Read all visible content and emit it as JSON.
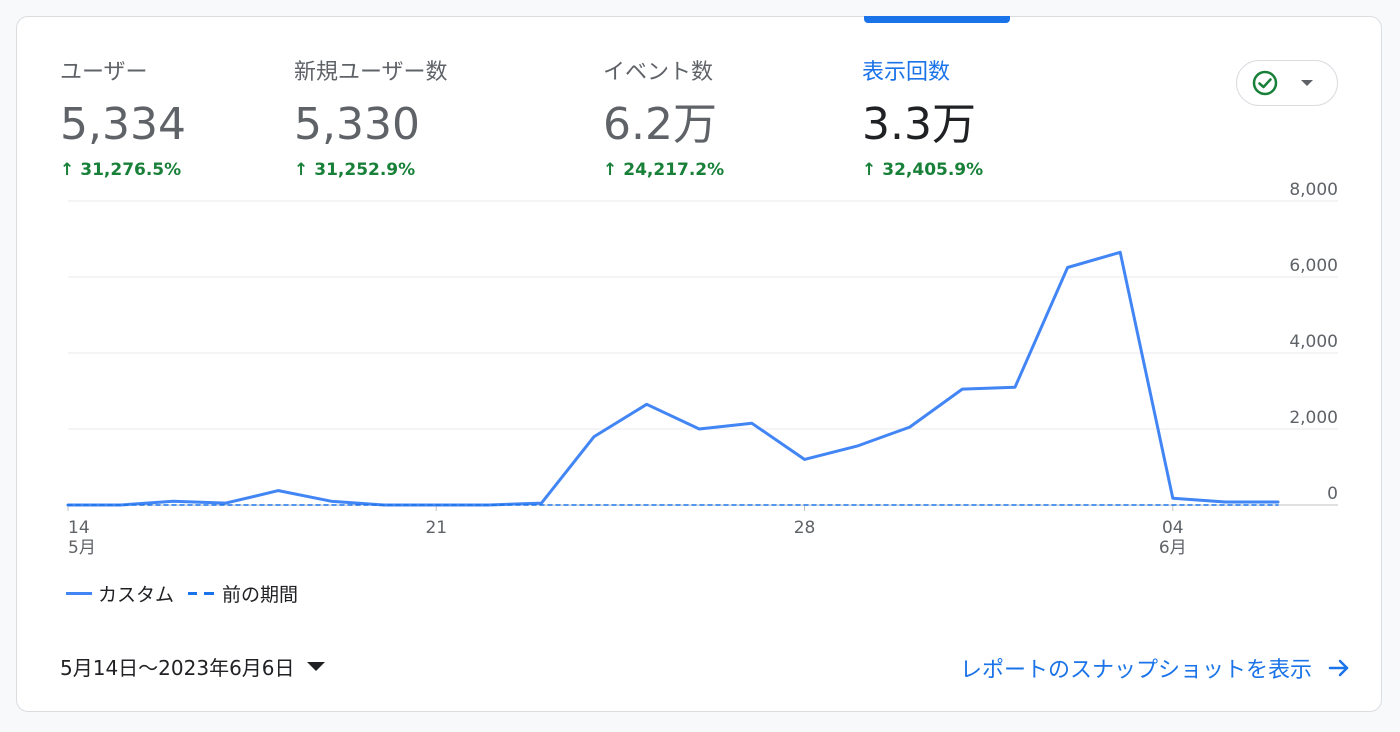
{
  "metrics": [
    {
      "label": "ユーザー",
      "value": "5,334",
      "change": "31,276.5%",
      "active": false
    },
    {
      "label": "新規ユーザー数",
      "value": "5,330",
      "change": "31,252.9%",
      "active": false
    },
    {
      "label": "イベント数",
      "value": "6.2万",
      "change": "24,217.2%",
      "active": false
    },
    {
      "label": "表示回数",
      "value": "3.3万",
      "change": "32,405.9%",
      "active": true
    }
  ],
  "compare_toggle": {
    "icon": "check-circle-icon",
    "dropdown_icon": "chevron-down-icon"
  },
  "legend": {
    "current": "カスタム",
    "previous": "前の期間"
  },
  "date_range": "5月14日〜2023年6月6日",
  "snapshot_link": "レポートのスナップショットを表示",
  "colors": {
    "line": "#4285f4",
    "accent": "#1a73e8",
    "positive": "#188038"
  },
  "chart_data": {
    "type": "line",
    "x": [
      "05-14",
      "05-15",
      "05-16",
      "05-17",
      "05-18",
      "05-19",
      "05-20",
      "05-21",
      "05-22",
      "05-23",
      "05-24",
      "05-25",
      "05-26",
      "05-27",
      "05-28",
      "05-29",
      "05-30",
      "05-31",
      "06-01",
      "06-02",
      "06-03",
      "06-04",
      "06-05",
      "06-06"
    ],
    "x_tick_labels": [
      {
        "index": 0,
        "day": "14",
        "month": "5月"
      },
      {
        "index": 7,
        "day": "21",
        "month": ""
      },
      {
        "index": 14,
        "day": "28",
        "month": ""
      },
      {
        "index": 21,
        "day": "04",
        "month": "6月"
      }
    ],
    "series": [
      {
        "name": "カスタム",
        "style": "solid",
        "values": [
          0,
          0,
          100,
          50,
          380,
          100,
          0,
          0,
          0,
          50,
          1800,
          2650,
          2000,
          2150,
          1200,
          1550,
          2050,
          3050,
          3100,
          6250,
          6650,
          180,
          80,
          80
        ]
      },
      {
        "name": "前の期間",
        "style": "dashed",
        "values": [
          0,
          0,
          0,
          0,
          0,
          0,
          0,
          0,
          0,
          0,
          0,
          0,
          0,
          0,
          0,
          0,
          0,
          0,
          0,
          0,
          0,
          0,
          0,
          0
        ]
      }
    ],
    "y_ticks": [
      "8,000",
      "6,000",
      "4,000",
      "2,000",
      "0"
    ],
    "ylim": [
      0,
      8000
    ],
    "grid": true,
    "y_axis_side": "right"
  }
}
